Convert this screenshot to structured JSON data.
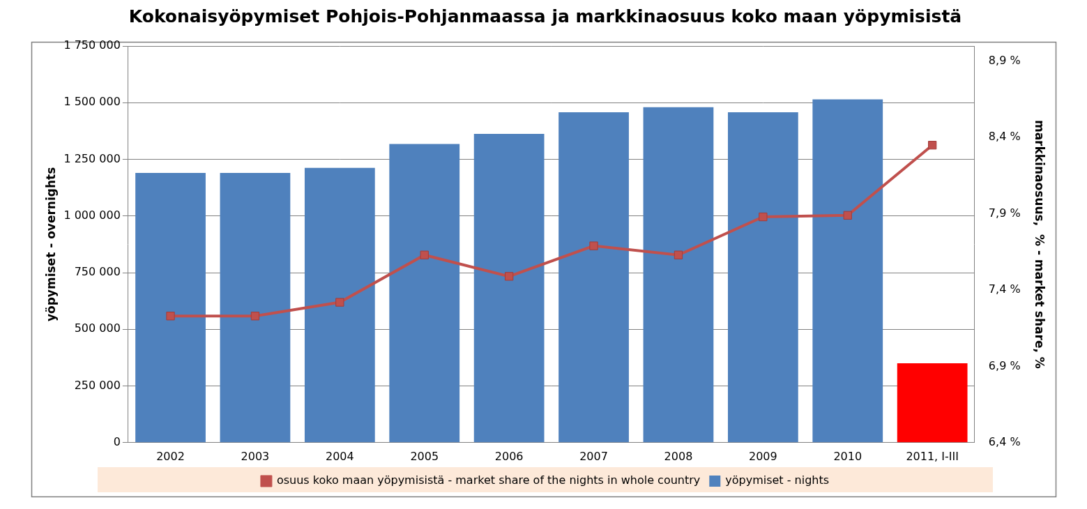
{
  "chart_data": {
    "type": "bar",
    "title": "Kokonaisyöpymiset Pohjois-Pohjanmaassa ja markkinaosuus koko maan yöpymisistä",
    "ylabel": "yöpymiset - overnights",
    "y2label": "markkinaosuus,  % - market share, %",
    "categories": [
      "2002",
      "2003",
      "2004",
      "2005",
      "2006",
      "2007",
      "2008",
      "2009",
      "2010",
      "2011, I-III"
    ],
    "series": [
      {
        "name": "yöpymiset - nights",
        "type": "bar",
        "colors": [
          "#4f81bd",
          "#4f81bd",
          "#4f81bd",
          "#4f81bd",
          "#4f81bd",
          "#4f81bd",
          "#4f81bd",
          "#4f81bd",
          "#4f81bd",
          "#ff0000"
        ],
        "values": [
          1190000,
          1190000,
          1212000,
          1318000,
          1362000,
          1458000,
          1480000,
          1458000,
          1515000,
          350000
        ]
      },
      {
        "name": "osuus koko maan yöpymisistä - market share of the nights in whole country",
        "type": "line",
        "axis": "y2",
        "color": "#c0504d",
        "marker": "square",
        "values": [
          7.23,
          7.23,
          7.32,
          7.63,
          7.49,
          7.69,
          7.63,
          7.88,
          7.89,
          8.35
        ]
      }
    ],
    "ylim": [
      0,
      1750000
    ],
    "yticks": [
      0,
      {
        "value": 250000,
        "label": "250 000"
      },
      {
        "value": 500000,
        "label": "500 000"
      },
      {
        "value": 750000,
        "label": "750 000"
      },
      {
        "value": 1000000,
        "label": "1 000 000"
      },
      {
        "value": 1250000,
        "label": "1 250 000"
      },
      {
        "value": 1500000,
        "label": "1 500 000"
      },
      {
        "value": 1750000,
        "label": "1 750 000"
      }
    ],
    "y2lim": [
      6.4,
      9.0
    ],
    "y2ticks": [
      {
        "value": 6.4,
        "label": "6,4 %"
      },
      {
        "value": 6.9,
        "label": "6,9 %"
      },
      {
        "value": 7.4,
        "label": "7,4 %"
      },
      {
        "value": 7.9,
        "label": "7,9 %"
      },
      {
        "value": 8.4,
        "label": "8,4 %"
      },
      {
        "value": 8.9,
        "label": "8,9 %"
      }
    ],
    "grid": true,
    "legend": "bottom"
  }
}
